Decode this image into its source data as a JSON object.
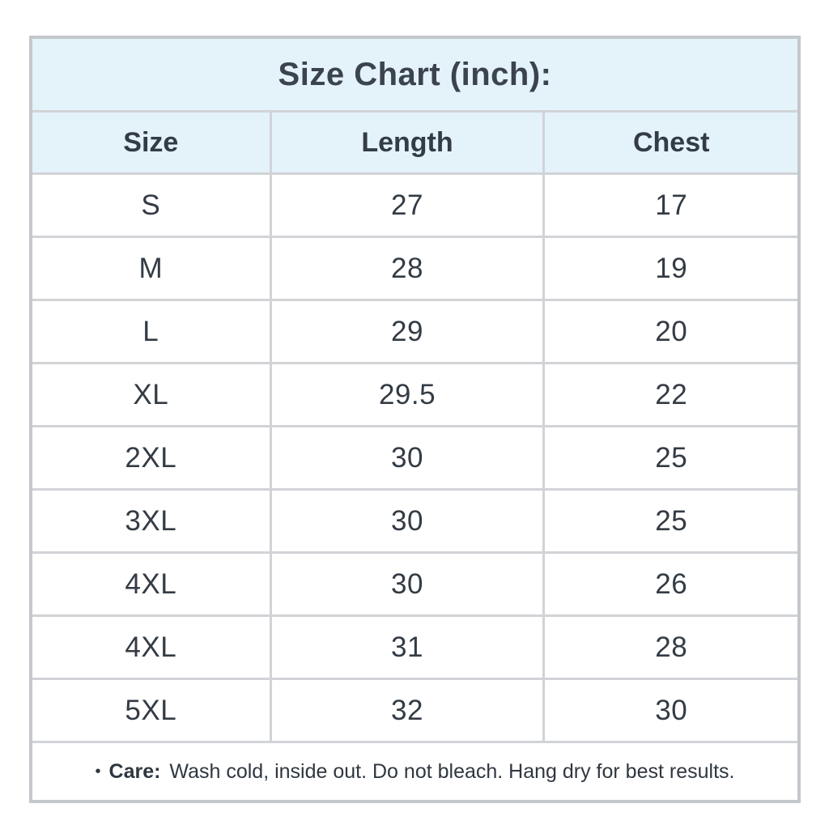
{
  "chart_data": {
    "type": "table",
    "title": "Size Chart (inch):",
    "columns": [
      "Size",
      "Length",
      "Chest"
    ],
    "rows": [
      [
        "S",
        "27",
        "17"
      ],
      [
        "M",
        "28",
        "19"
      ],
      [
        "L",
        "29",
        "20"
      ],
      [
        "XL",
        "29.5",
        "22"
      ],
      [
        "2XL",
        "30",
        "25"
      ],
      [
        "3XL",
        "30",
        "25"
      ],
      [
        "4XL",
        "30",
        "26"
      ],
      [
        "4XL",
        "31",
        "28"
      ],
      [
        "5XL",
        "32",
        "30"
      ]
    ]
  },
  "care": {
    "bullet": "•",
    "label": "Care:",
    "text": "Wash cold, inside out. Do not bleach. Hang dry for best results."
  },
  "colors": {
    "band_bg": "#e4f2fa",
    "border_inner": "#d1d3d7",
    "border_outer": "#c4c7cc",
    "title_text": "#3b434e",
    "cell_text": "#333b44"
  }
}
